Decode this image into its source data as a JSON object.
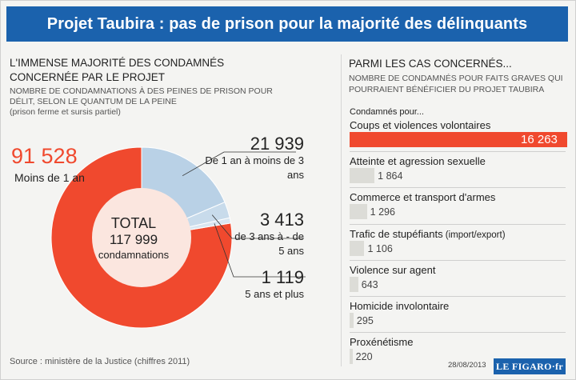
{
  "header": {
    "title": "Projet Taubira : pas de prison pour la majorité des délinquants"
  },
  "left": {
    "heading": "L'IMMENSE MAJORITÉ DES CONDAMNÉS CONCERNÉE PAR LE PROJET",
    "subheading": "NOMBRE DE CONDAMNATIONS À DES PEINES DE PRISON POUR DÉLIT, SELON LE QUANTUM DE LA PEINE",
    "note": "(prison ferme et sursis partiel)",
    "total_label": "TOTAL",
    "total_value": "117 999",
    "total_unit": "condamnations",
    "source": "Source : ministère de la Justice (chiffres 2011)"
  },
  "right": {
    "heading": "PARMI LES CAS CONCERNÉS...",
    "subheading": "NOMBRE DE CONDAMNÉS POUR FAITS GRAVES QUI POURRAIENT BÉNÉFICIER DU PROJET TAUBIRA",
    "condamnes_pour": "Condamnés pour...",
    "date": "28/08/2013",
    "logo": "LE FIGARO·fr"
  },
  "colors": {
    "header": "#1b62ad",
    "red": "#f0492e",
    "blue": "#b9d1e6",
    "grey": "#dcdcd7"
  },
  "chart_data": [
    {
      "type": "pie",
      "title": "Nombre de condamnations à des peines de prison pour délit, selon le quantum de la peine",
      "slices": [
        {
          "label_value": "91 528",
          "label": "Moins de 1 an",
          "value": 91528,
          "color": "#f0492e"
        },
        {
          "label_value": "21 939",
          "label": "De 1 an à moins de 3 ans",
          "value": 21939,
          "color": "#b9d1e6"
        },
        {
          "label_value": "3 413",
          "label": "de 3 ans à - de 5 ans",
          "value": 3413,
          "color": "#c8dbeb"
        },
        {
          "label_value": "1 119",
          "label": "5 ans et plus",
          "value": 1119,
          "color": "#d9e6f1"
        }
      ],
      "total": 117999
    },
    {
      "type": "bar",
      "title": "Nombre de condamnés pour faits graves qui pourraient bénéficier du projet Taubira",
      "categories": [
        "Coups et violences volontaires",
        "Atteinte et agression sexuelle",
        "Commerce et transport d'armes",
        "Trafic de stupéfiants",
        "Violence sur agent",
        "Homicide involontaire",
        "Proxénétisme"
      ],
      "category_notes": [
        "",
        "",
        "",
        "(import/export)",
        "",
        "",
        ""
      ],
      "labels": [
        "16 263",
        "1 864",
        "1 296",
        "1 106",
        "643",
        "295",
        "220"
      ],
      "values": [
        16263,
        1864,
        1296,
        1106,
        643,
        295,
        220
      ]
    }
  ]
}
